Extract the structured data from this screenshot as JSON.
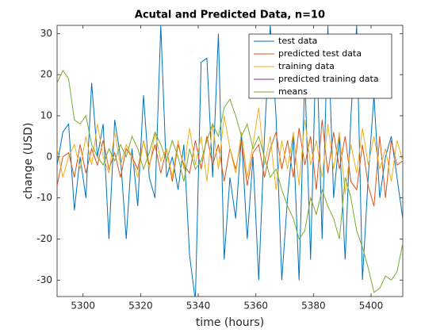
{
  "chart_data": {
    "type": "line",
    "title": "Acutal and Predicted Data, n=10",
    "x_label": "time (hours)",
    "y_label": "change (USD)",
    "x": [
      5291,
      5293,
      5295,
      5297,
      5299,
      5301,
      5303,
      5305,
      5307,
      5309,
      5311,
      5313,
      5315,
      5317,
      5319,
      5321,
      5323,
      5325,
      5327,
      5329,
      5331,
      5333,
      5335,
      5337,
      5339,
      5341,
      5343,
      5345,
      5347,
      5349,
      5351,
      5353,
      5355,
      5357,
      5359,
      5361,
      5363,
      5365,
      5367,
      5369,
      5371,
      5373,
      5375,
      5377,
      5379,
      5381,
      5383,
      5385,
      5387,
      5389,
      5391,
      5393,
      5395,
      5397,
      5399,
      5401,
      5403,
      5405,
      5407,
      5409,
      5411
    ],
    "series": [
      {
        "name": "test data",
        "color": "#0072bd",
        "values": [
          -2,
          6,
          8,
          -13,
          0,
          -10,
          18,
          0,
          8,
          -20,
          9,
          0,
          -20,
          2,
          -12,
          15,
          -5,
          -10,
          32,
          -5,
          0,
          -8,
          3,
          -24,
          -35,
          23,
          24,
          -5,
          30,
          -25,
          -5,
          -15,
          5,
          -20,
          0,
          -30,
          5,
          32,
          10,
          -30,
          -10,
          5,
          -30,
          20,
          -25,
          30,
          -20,
          32,
          -10,
          5,
          -25,
          10,
          32,
          -30,
          -5,
          15,
          -10,
          0,
          5,
          -5,
          -15
        ]
      },
      {
        "name": "predicted test data",
        "color": "#d95319",
        "values": [
          -7,
          0,
          1,
          -5,
          3,
          -4,
          2,
          -2,
          4,
          -3,
          1,
          -5,
          2,
          0,
          -3,
          4,
          -2,
          3,
          -4,
          2,
          -6,
          3,
          -2,
          -4,
          4,
          -3,
          5,
          -2,
          3,
          -6,
          2,
          -3,
          4,
          -7,
          1,
          3,
          -5,
          2,
          6,
          -3,
          4,
          -5,
          7,
          -2,
          5,
          -8,
          9,
          -4,
          6,
          -3,
          5,
          -6,
          -8,
          3,
          -7,
          -12,
          5,
          -10,
          4,
          -2,
          -1
        ]
      },
      {
        "name": "training data",
        "color": "#edb120",
        "values": [
          2,
          -5,
          0,
          3,
          -3,
          5,
          -2,
          8,
          0,
          -4,
          6,
          -2,
          3,
          0,
          -5,
          4,
          -3,
          6,
          -1,
          2,
          -5,
          4,
          -3,
          7,
          -2,
          5,
          -6,
          8,
          -3,
          10,
          2,
          -4,
          6,
          -5,
          3,
          12,
          -2,
          5,
          -8,
          4,
          -3,
          6,
          -7,
          9,
          -2,
          4,
          -5,
          8,
          -3,
          6,
          -9,
          3,
          -4,
          7,
          -2,
          5,
          -3,
          2,
          -6,
          4,
          -1
        ]
      },
      {
        "name": "predicted training data",
        "color": "#7e2f8e",
        "values": [
          null,
          null,
          null,
          null,
          null,
          null,
          null,
          null,
          null,
          null,
          null,
          null,
          null,
          null,
          null,
          null,
          null,
          null,
          null,
          null,
          null,
          null,
          null,
          null,
          null,
          null,
          null,
          null,
          null,
          null,
          null,
          null,
          null,
          null,
          null,
          null,
          null,
          null,
          null,
          null,
          null,
          null,
          null,
          null,
          null,
          null,
          null,
          null,
          null,
          null,
          null,
          null,
          null,
          null,
          null,
          null,
          null,
          null,
          null,
          null,
          null
        ]
      },
      {
        "name": "means",
        "color": "#77ac30",
        "values": [
          18,
          21,
          19,
          9,
          8,
          10,
          3,
          0,
          -2,
          2,
          -1,
          3,
          0,
          5,
          2,
          -3,
          1,
          6,
          3,
          -1,
          4,
          0,
          -6,
          2,
          -3,
          -1,
          4,
          8,
          5,
          12,
          14,
          10,
          5,
          8,
          2,
          5,
          0,
          -5,
          -3,
          -8,
          -12,
          -15,
          -20,
          -18,
          -10,
          -14,
          -8,
          -12,
          -15,
          -20,
          -5,
          -10,
          -18,
          -22,
          -27,
          -33,
          -32,
          -29,
          -30,
          -28,
          -21
        ]
      }
    ],
    "xlim": [
      5291,
      5411
    ],
    "xticks": [
      5300,
      5320,
      5340,
      5360,
      5380,
      5400
    ],
    "ylim": [
      -34,
      32
    ],
    "yticks": [
      -30,
      -20,
      -10,
      0,
      10,
      20,
      30
    ],
    "legend": "northeast"
  }
}
